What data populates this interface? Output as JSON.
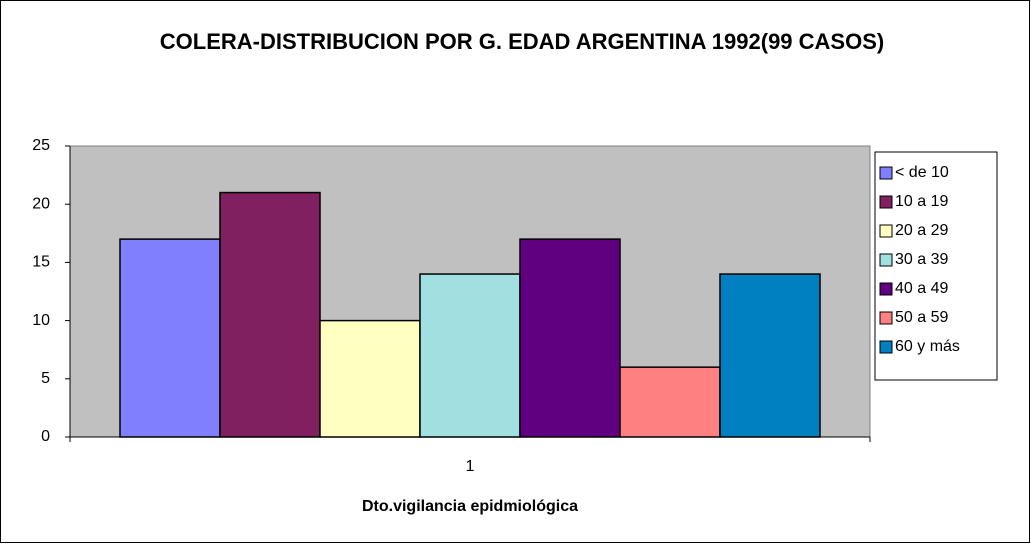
{
  "chart_data": {
    "type": "bar",
    "title": "COLERA-DISTRIBUCION POR G. EDAD ARGENTINA 1992(99 CASOS)",
    "x_label": "Dto.vigilancia epidmiológica",
    "categories": [
      "1"
    ],
    "series": [
      {
        "name": "< de 10",
        "color": "#8080ff",
        "values": [
          17
        ]
      },
      {
        "name": "10 a 19",
        "color": "#802060",
        "values": [
          21
        ]
      },
      {
        "name": "20 a 29",
        "color": "#ffffc0",
        "values": [
          10
        ]
      },
      {
        "name": "30 a 39",
        "color": "#a0e0e0",
        "values": [
          14
        ]
      },
      {
        "name": "40 a 49",
        "color": "#600080",
        "values": [
          17
        ]
      },
      {
        "name": "50 a 59",
        "color": "#ff8080",
        "values": [
          6
        ]
      },
      {
        "name": "60 y más",
        "color": "#0080c0",
        "values": [
          14
        ]
      }
    ],
    "ylim": [
      0,
      25
    ],
    "yticks": [
      0,
      5,
      10,
      15,
      20,
      25
    ],
    "legend": "right",
    "plot_background": "#c0c0c0"
  }
}
